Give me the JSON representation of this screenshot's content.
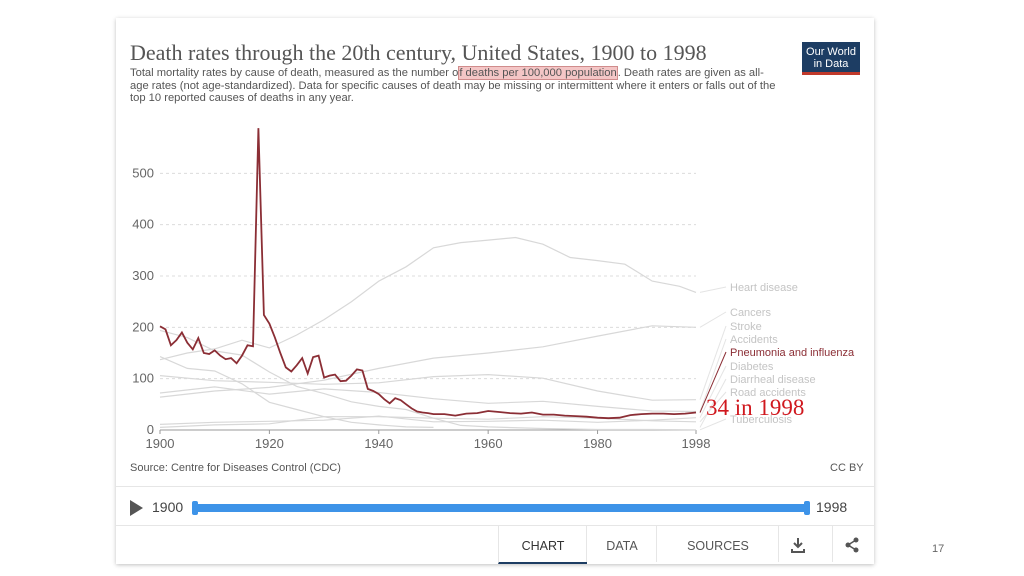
{
  "title": "Death rates through the 20th century, United States, 1900 to 1998",
  "subtitle_pre": "Total mortality rates by cause of death, measured as the number o",
  "subtitle_hl": "f deaths per 100,000 population",
  "subtitle_post": ". Death rates are given as all-age rates (not age-standardized). Data for specific causes of death may be missing or intermittent where it enters or falls out of the top 10 reported causes of deaths in any year.",
  "logo": {
    "line1": "Our World",
    "line2": "in Data"
  },
  "source": "Source: Centre for Diseases Control (CDC)",
  "license": "CC BY",
  "annotation": "34 in 1998",
  "timeline": {
    "start": "1900",
    "end": "1998"
  },
  "tabs": {
    "chart": "CHART",
    "data": "DATA",
    "sources": "SOURCES"
  },
  "icons": {
    "play": "play-icon",
    "download": "download-icon",
    "share": "share-icon"
  },
  "slide_number": "17",
  "colors": {
    "highlight": "#8b2e35",
    "muted": "#d8d8d8",
    "annotation": "#d0181e",
    "brand": "#1d3d63",
    "slider": "#3d93e8"
  },
  "chart_data": {
    "type": "line",
    "xlim": [
      1900,
      1998
    ],
    "ylim": [
      0,
      600
    ],
    "x_ticks": [
      "1900",
      "1920",
      "1940",
      "1960",
      "1980",
      "1998"
    ],
    "y_ticks": [
      "0",
      "100",
      "200",
      "300",
      "400",
      "500"
    ],
    "grid": true,
    "legend": "right",
    "highlighted_series": "Pneumonia and influenza",
    "series": [
      {
        "name": "Heart disease",
        "x": [
          1900,
          1905,
          1910,
          1915,
          1920,
          1925,
          1930,
          1935,
          1940,
          1945,
          1950,
          1955,
          1960,
          1965,
          1970,
          1975,
          1980,
          1985,
          1990,
          1995,
          1998
        ],
        "y": [
          137,
          150,
          158,
          175,
          160,
          185,
          215,
          250,
          290,
          318,
          355,
          365,
          370,
          375,
          362,
          336,
          330,
          323,
          290,
          280,
          268
        ]
      },
      {
        "name": "Cancers",
        "x": [
          1900,
          1910,
          1920,
          1930,
          1940,
          1950,
          1960,
          1970,
          1980,
          1990,
          1998
        ],
        "y": [
          64,
          76,
          83,
          97,
          120,
          140,
          150,
          162,
          183,
          203,
          200
        ]
      },
      {
        "name": "Stroke",
        "x": [
          1900,
          1910,
          1920,
          1930,
          1940,
          1950,
          1960,
          1970,
          1980,
          1990,
          1998
        ],
        "y": [
          106,
          96,
          93,
          89,
          92,
          104,
          108,
          101,
          76,
          58,
          59
        ]
      },
      {
        "name": "Accidents",
        "x": [
          1900,
          1910,
          1920,
          1930,
          1940,
          1950,
          1960,
          1970,
          1980,
          1990,
          1998
        ],
        "y": [
          72,
          84,
          70,
          80,
          73,
          61,
          52,
          56,
          46,
          37,
          36
        ]
      },
      {
        "name": "Pneumonia and influenza",
        "x": [
          1900,
          1901,
          1902,
          1903,
          1904,
          1905,
          1906,
          1907,
          1908,
          1909,
          1910,
          1911,
          1912,
          1913,
          1914,
          1915,
          1916,
          1917,
          1918,
          1919,
          1920,
          1921,
          1922,
          1923,
          1924,
          1925,
          1926,
          1927,
          1928,
          1929,
          1930,
          1931,
          1932,
          1933,
          1934,
          1935,
          1936,
          1937,
          1938,
          1939,
          1940,
          1941,
          1942,
          1943,
          1944,
          1945,
          1946,
          1947,
          1948,
          1949,
          1950,
          1952,
          1954,
          1956,
          1958,
          1960,
          1962,
          1964,
          1966,
          1968,
          1970,
          1972,
          1974,
          1976,
          1978,
          1980,
          1982,
          1984,
          1986,
          1988,
          1990,
          1992,
          1994,
          1996,
          1998
        ],
        "y": [
          202,
          196,
          165,
          175,
          190,
          170,
          157,
          179,
          150,
          148,
          155,
          145,
          138,
          140,
          130,
          145,
          165,
          163,
          588,
          224,
          207,
          180,
          150,
          122,
          114,
          126,
          140,
          110,
          142,
          145,
          102,
          106,
          108,
          95,
          96,
          106,
          118,
          116,
          80,
          76,
          70,
          60,
          52,
          62,
          58,
          50,
          42,
          36,
          34,
          33,
          31,
          31,
          28,
          32,
          33,
          37,
          35,
          33,
          32,
          34,
          30,
          30,
          28,
          27,
          26,
          24,
          23,
          24,
          29,
          31,
          32,
          32,
          31,
          32,
          34
        ]
      },
      {
        "name": "Diabetes",
        "x": [
          1900,
          1910,
          1920,
          1930,
          1940,
          1950,
          1960,
          1970,
          1980,
          1990,
          1998
        ],
        "y": [
          11,
          15,
          17,
          19,
          27,
          16,
          17,
          19,
          15,
          19,
          24
        ]
      },
      {
        "name": "Diarrheal disease",
        "x": [
          1900,
          1905,
          1910,
          1915,
          1920,
          1925,
          1930,
          1935,
          1940,
          1945,
          1950
        ],
        "y": [
          143,
          120,
          115,
          90,
          54,
          40,
          26,
          15,
          10,
          6,
          5
        ]
      },
      {
        "name": "Road accidents",
        "x": [
          1900,
          1910,
          1920,
          1930,
          1940,
          1950,
          1960,
          1970,
          1980,
          1990,
          1998
        ],
        "y": [
          5,
          10,
          12,
          26,
          26,
          23,
          21,
          26,
          23,
          18,
          16
        ]
      },
      {
        "name": "Tuberculosis",
        "x": [
          1900,
          1905,
          1910,
          1915,
          1920,
          1925,
          1930,
          1935,
          1940,
          1945,
          1950,
          1955,
          1960,
          1970,
          1980,
          1990,
          1998
        ],
        "y": [
          194,
          180,
          154,
          146,
          113,
          85,
          71,
          55,
          46,
          40,
          23,
          9,
          6,
          3,
          1,
          1,
          0.4
        ]
      }
    ]
  }
}
